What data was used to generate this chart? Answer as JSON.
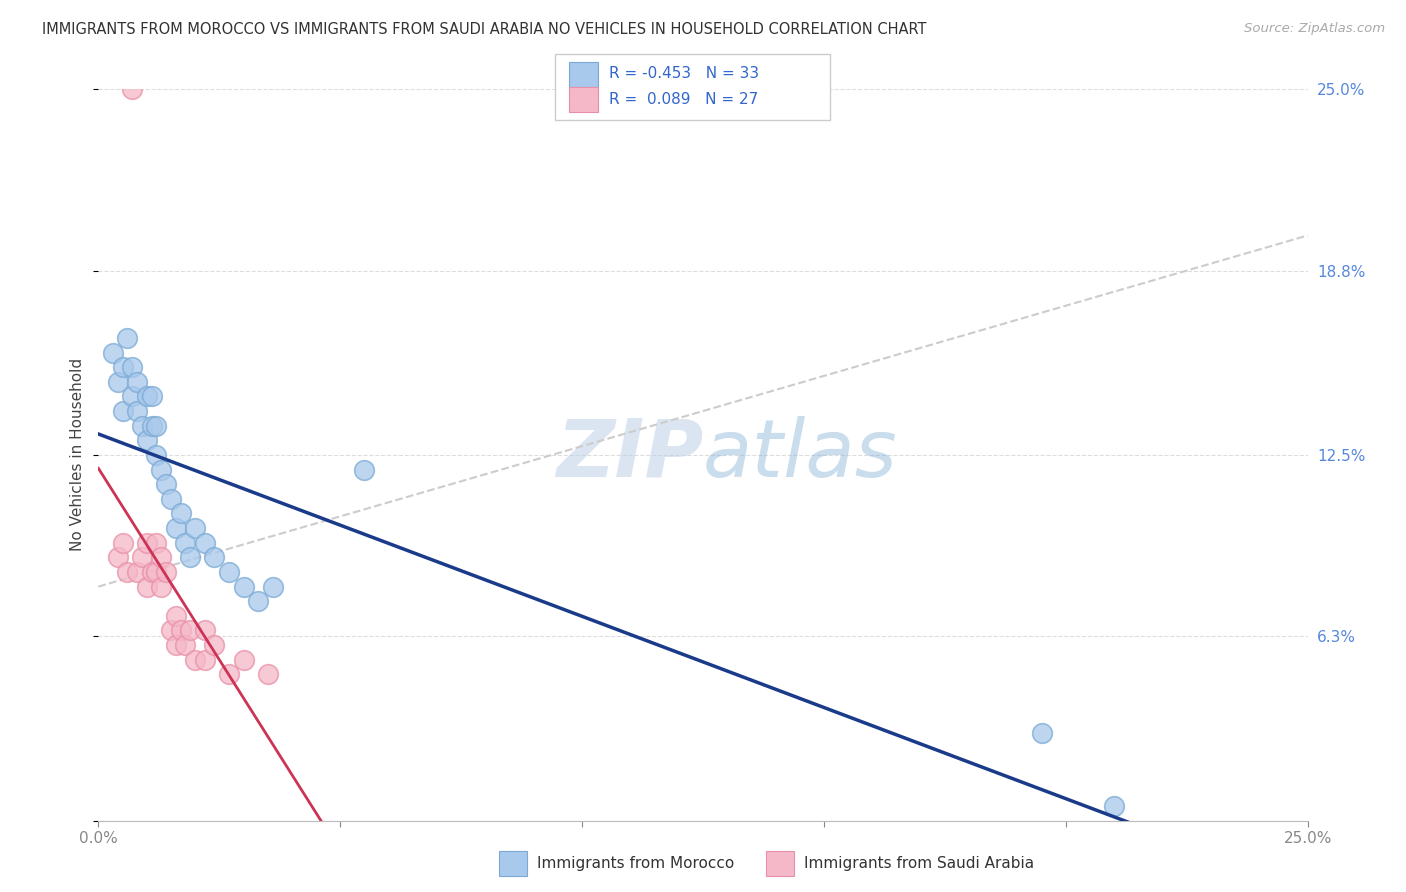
{
  "title": "IMMIGRANTS FROM MOROCCO VS IMMIGRANTS FROM SAUDI ARABIA NO VEHICLES IN HOUSEHOLD CORRELATION CHART",
  "source": "Source: ZipAtlas.com",
  "ylabel": "No Vehicles in Household",
  "legend_r1": "-0.453",
  "legend_n1": "33",
  "legend_r2": "0.089",
  "legend_n2": "27",
  "morocco_color": "#a8c8ec",
  "saudi_color": "#f5b8c8",
  "morocco_edge_color": "#7aaad4",
  "saudi_edge_color": "#e890a8",
  "morocco_line_color": "#1a3a8a",
  "saudi_line_color": "#cc3355",
  "dashed_line_color": "#cccccc",
  "watermark_color": "#c8ddf0",
  "background_color": "#ffffff",
  "grid_color": "#dddddd",
  "tick_color_right": "#5588dd",
  "xlim": [
    0.0,
    0.25
  ],
  "ylim": [
    0.0,
    0.25
  ],
  "morocco_x": [
    0.003,
    0.004,
    0.005,
    0.005,
    0.006,
    0.007,
    0.007,
    0.008,
    0.008,
    0.009,
    0.01,
    0.01,
    0.011,
    0.011,
    0.012,
    0.012,
    0.013,
    0.014,
    0.015,
    0.016,
    0.017,
    0.018,
    0.019,
    0.02,
    0.022,
    0.024,
    0.027,
    0.03,
    0.033,
    0.036,
    0.055,
    0.195,
    0.21
  ],
  "morocco_y": [
    0.16,
    0.15,
    0.155,
    0.14,
    0.165,
    0.145,
    0.155,
    0.14,
    0.15,
    0.135,
    0.145,
    0.13,
    0.135,
    0.145,
    0.125,
    0.135,
    0.12,
    0.115,
    0.11,
    0.1,
    0.105,
    0.095,
    0.09,
    0.1,
    0.095,
    0.09,
    0.085,
    0.08,
    0.075,
    0.08,
    0.12,
    0.03,
    0.005
  ],
  "saudi_x": [
    0.004,
    0.005,
    0.006,
    0.007,
    0.008,
    0.009,
    0.01,
    0.01,
    0.011,
    0.012,
    0.012,
    0.013,
    0.013,
    0.014,
    0.015,
    0.016,
    0.016,
    0.017,
    0.018,
    0.019,
    0.02,
    0.022,
    0.022,
    0.024,
    0.027,
    0.03,
    0.035
  ],
  "saudi_y": [
    0.09,
    0.095,
    0.085,
    0.25,
    0.085,
    0.09,
    0.08,
    0.095,
    0.085,
    0.085,
    0.095,
    0.08,
    0.09,
    0.085,
    0.065,
    0.06,
    0.07,
    0.065,
    0.06,
    0.065,
    0.055,
    0.055,
    0.065,
    0.06,
    0.05,
    0.055,
    0.05
  ]
}
